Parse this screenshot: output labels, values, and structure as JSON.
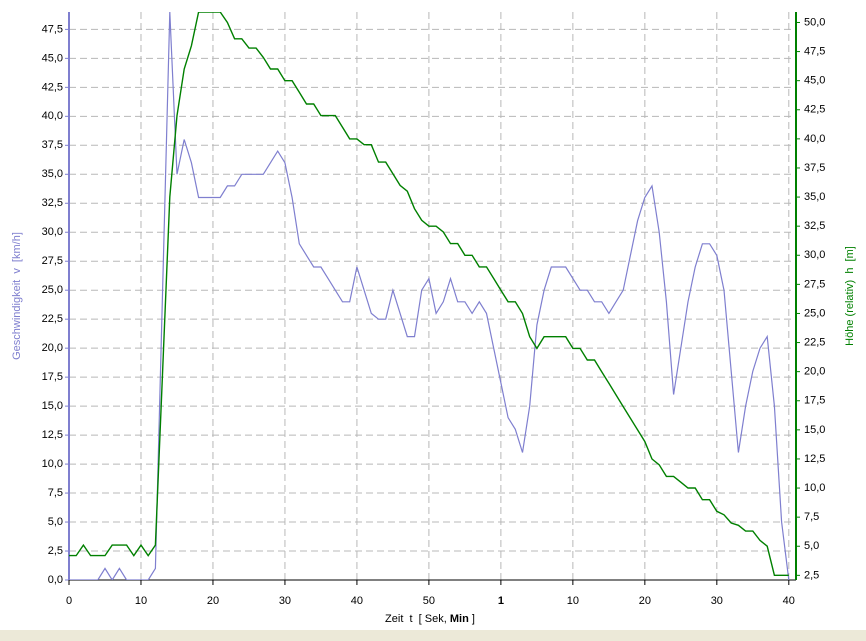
{
  "chart_data": {
    "type": "line",
    "x_label": "Zeit  t  [ Sek,",
    "x_label_bold": "Min",
    "x_label_end": "]",
    "y_label": "Geschwindigkeit  v  [km/h]",
    "y2_label": "Höhe (relativ)  h  [m]",
    "x": [
      0,
      1,
      2,
      3,
      4,
      5,
      6,
      7,
      8,
      9,
      10,
      11,
      12,
      13,
      14,
      15,
      16,
      17,
      18,
      19,
      20,
      21,
      22,
      23,
      24,
      25,
      26,
      27,
      28,
      29,
      30,
      31,
      32,
      33,
      34,
      35,
      36,
      37,
      38,
      39,
      40,
      41,
      42,
      43,
      44,
      45,
      46,
      47,
      48,
      49,
      50,
      51,
      52,
      53,
      54,
      55,
      56,
      57,
      58,
      59,
      60,
      61,
      62,
      63,
      64,
      65,
      66,
      67,
      68,
      69,
      70,
      71,
      72,
      73,
      74,
      75,
      76,
      77,
      78,
      79,
      80,
      81,
      82,
      83,
      84,
      85,
      86,
      87,
      88,
      89,
      90,
      91,
      92,
      93,
      94,
      95,
      96,
      97,
      98,
      99,
      100
    ],
    "series": [
      {
        "name": "v",
        "color": "#7f7fcf",
        "axis": "y",
        "values": [
          0,
          0,
          0,
          0,
          0,
          1,
          0,
          1,
          0,
          0,
          0,
          0,
          1,
          25,
          49,
          35,
          38,
          36,
          33,
          33,
          33,
          33,
          34,
          34,
          35,
          35,
          35,
          35,
          36,
          37,
          36,
          33,
          29,
          28,
          27,
          27,
          26,
          25,
          24,
          24,
          27,
          25,
          23,
          22.5,
          22.5,
          25,
          23,
          21,
          21,
          25,
          26,
          23,
          24,
          26,
          24,
          24,
          23,
          24,
          23,
          20,
          17,
          14,
          13,
          11,
          15,
          22,
          25,
          27,
          27,
          27,
          26,
          25,
          25,
          24,
          24,
          23,
          24,
          25,
          28,
          31,
          33,
          34,
          30,
          24,
          16,
          20,
          24,
          27,
          29,
          29,
          28,
          25,
          18,
          11,
          15,
          18,
          20,
          21,
          15,
          5,
          0
        ]
      },
      {
        "name": "h",
        "color": "#008000",
        "axis": "y2",
        "values": [
          4.2,
          4.2,
          5.1,
          4.2,
          4.2,
          4.2,
          5.1,
          5.1,
          5.1,
          4.2,
          5.1,
          4.2,
          5.1,
          20,
          35,
          42,
          46,
          48,
          50.9,
          50.9,
          50.9,
          50.9,
          50,
          48.6,
          48.6,
          47.8,
          47.8,
          47,
          46,
          46,
          45,
          45,
          44,
          43,
          43,
          42,
          42,
          42,
          41,
          40,
          40,
          39.5,
          39.5,
          38,
          38,
          37,
          36,
          35.5,
          34,
          33,
          32.5,
          32.5,
          32,
          31,
          31,
          30,
          30,
          29,
          29,
          28,
          27,
          26,
          26,
          25,
          23,
          22,
          23,
          23,
          23,
          23,
          22,
          22,
          21,
          21,
          20,
          19,
          18,
          17,
          16,
          15,
          14,
          12.5,
          12,
          11,
          11,
          10.5,
          10,
          10,
          9,
          9,
          8,
          7.7,
          7,
          6.8,
          6.3,
          6.3,
          5.5,
          5,
          2.5,
          2.5,
          2.5
        ]
      }
    ],
    "xlim": [
      0,
      101
    ],
    "xticks": [
      0,
      10,
      20,
      30,
      40,
      50,
      {
        "value": 60,
        "label": "1"
      },
      {
        "value": 70,
        "label": "10"
      },
      {
        "value": 80,
        "label": "20"
      },
      {
        "value": 90,
        "label": "30"
      },
      {
        "value": 100,
        "label": "40"
      }
    ],
    "ylim": [
      0,
      49
    ],
    "yticks": [
      {
        "value": 0,
        "label": "0,0"
      },
      {
        "value": 2.5,
        "label": "2,5"
      },
      {
        "value": 5,
        "label": "5,0"
      },
      {
        "value": 7.5,
        "label": "7,5"
      },
      {
        "value": 10,
        "label": "10,0"
      },
      {
        "value": 12.5,
        "label": "12,5"
      },
      {
        "value": 15,
        "label": "15,0"
      },
      {
        "value": 17.5,
        "label": "17,5"
      },
      {
        "value": 20,
        "label": "20,0"
      },
      {
        "value": 22.5,
        "label": "22,5"
      },
      {
        "value": 25,
        "label": "25,0"
      },
      {
        "value": 27.5,
        "label": "27,5"
      },
      {
        "value": 30,
        "label": "30,0"
      },
      {
        "value": 32.5,
        "label": "32,5"
      },
      {
        "value": 35,
        "label": "35,0"
      },
      {
        "value": 37.5,
        "label": "37,5"
      },
      {
        "value": 40,
        "label": "40,0"
      },
      {
        "value": 42.5,
        "label": "42,5"
      },
      {
        "value": 45,
        "label": "45,0"
      },
      {
        "value": 47.5,
        "label": "47,5"
      }
    ],
    "y2lim": [
      2.1,
      50.9
    ],
    "y2ticks": [
      {
        "value": 2.5,
        "label": "2,5"
      },
      {
        "value": 5,
        "label": "5,0"
      },
      {
        "value": 7.5,
        "label": "7,5"
      },
      {
        "value": 10,
        "label": "10,0"
      },
      {
        "value": 12.5,
        "label": "12,5"
      },
      {
        "value": 15,
        "label": "15,0"
      },
      {
        "value": 17.5,
        "label": "17,5"
      },
      {
        "value": 20,
        "label": "20,0"
      },
      {
        "value": 22.5,
        "label": "22,5"
      },
      {
        "value": 25,
        "label": "25,0"
      },
      {
        "value": 27.5,
        "label": "27,5"
      },
      {
        "value": 30,
        "label": "30,0"
      },
      {
        "value": 32.5,
        "label": "32,5"
      },
      {
        "value": 35,
        "label": "35,0"
      },
      {
        "value": 37.5,
        "label": "37,5"
      },
      {
        "value": 40,
        "label": "40,0"
      },
      {
        "value": 42.5,
        "label": "42,5"
      },
      {
        "value": 45,
        "label": "45,0"
      },
      {
        "value": 47.5,
        "label": "47,5"
      },
      {
        "value": 50,
        "label": "50,0"
      }
    ],
    "grid": true
  }
}
